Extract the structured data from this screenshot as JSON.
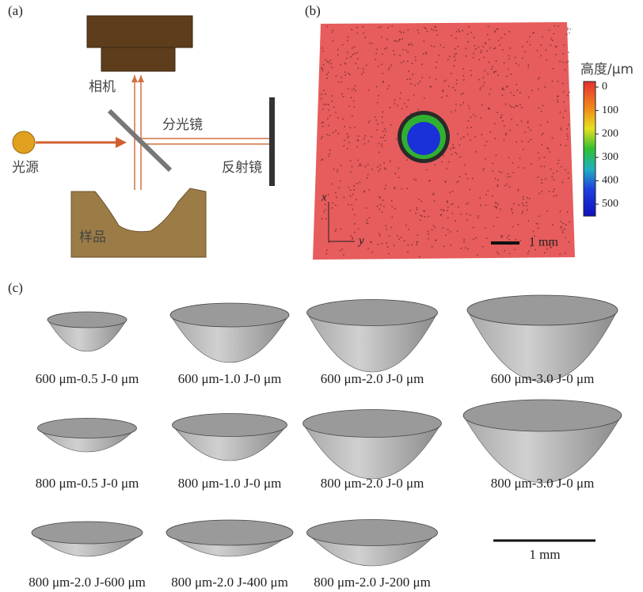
{
  "panel_a": {
    "label": "(a)",
    "camera": "相机",
    "splitter": "分光镜",
    "source": "光源",
    "mirror": "反射镜",
    "sample": "样品"
  },
  "panel_b": {
    "label": "(b)",
    "colorbar_title": "高度/μm",
    "colorbar_ticks": [
      0,
      100,
      200,
      300,
      400,
      500
    ],
    "axis_x": "x",
    "axis_y": "y",
    "scale_bar": "1 mm"
  },
  "panel_c": {
    "label": "(c)",
    "scale_bar": "1 mm",
    "captions": [
      "600 μm-0.5 J-0 μm",
      "600 μm-1.0 J-0 μm",
      "600 μm-2.0 J-0 μm",
      "600 μm-3.0 J-0 μm",
      "800 μm-0.5 J-0 μm",
      "800 μm-1.0 J-0 μm",
      "800 μm-2.0 J-0 μm",
      "800 μm-3.0 J-0 μm",
      "800 μm-2.0 J-600 μm",
      "800 μm-2.0 J-400 μm",
      "800 μm-2.0 J-200 μm"
    ]
  }
}
